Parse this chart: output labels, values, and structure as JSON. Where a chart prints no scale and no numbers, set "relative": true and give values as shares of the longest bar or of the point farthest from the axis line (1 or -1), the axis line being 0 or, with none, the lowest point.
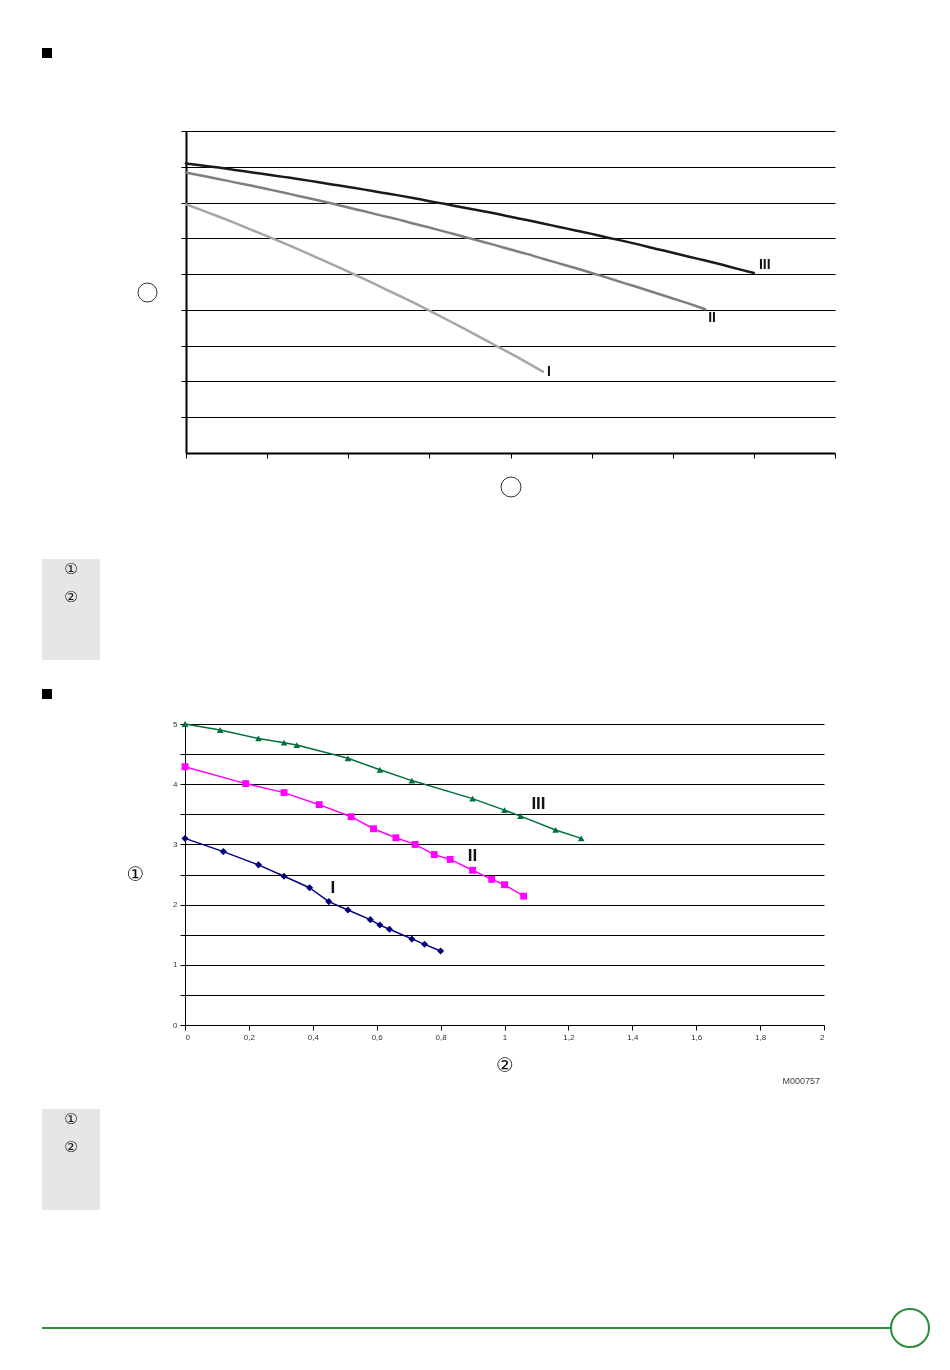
{
  "chart_data": [
    {
      "type": "line",
      "relative": true,
      "categories": [
        null,
        null,
        null,
        null,
        null,
        null,
        null,
        null,
        null,
        null,
        null,
        null,
        null,
        null,
        null,
        null,
        null,
        null,
        null,
        null,
        null,
        null,
        null,
        null,
        null,
        null,
        null,
        null,
        null,
        null,
        null,
        null,
        null,
        null,
        null,
        null,
        null,
        null,
        null,
        null,
        null
      ],
      "series": [
        {
          "name": "III",
          "color": "#1a1a1a",
          "values": [
            1,
            0.993,
            0.986,
            0.978,
            0.97,
            0.962,
            0.954,
            0.946,
            0.937,
            0.928,
            0.919,
            0.91,
            0.9,
            0.891,
            0.881,
            0.87,
            0.86,
            0.849,
            0.839,
            0.828,
            0.816,
            0.805,
            0.793,
            0.781,
            0.769,
            0.757,
            0.744,
            0.732,
            0.719,
            0.705,
            0.692,
            0.678,
            0.665,
            0.651,
            0.636,
            0.622,
            null,
            null,
            null,
            null,
            null
          ]
        },
        {
          "name": "II",
          "color": "#7f7f7f",
          "values": [
            0.969,
            0.958,
            0.947,
            0.935,
            0.924,
            0.912,
            0.9,
            0.887,
            0.875,
            0.862,
            0.848,
            0.835,
            0.821,
            0.808,
            0.793,
            0.779,
            0.764,
            0.749,
            0.734,
            0.719,
            0.703,
            0.688,
            0.671,
            0.655,
            0.639,
            0.622,
            0.605,
            0.587,
            0.57,
            0.552,
            0.534,
            0.516,
            0.497,
            null,
            null,
            null,
            null,
            null,
            null,
            null,
            null
          ]
        },
        {
          "name": "I",
          "color": "#a6a6a6",
          "values": [
            0.859,
            0.838,
            0.817,
            0.795,
            0.772,
            0.749,
            0.726,
            0.702,
            0.677,
            0.652,
            0.627,
            0.601,
            0.574,
            0.547,
            0.52,
            0.492,
            0.463,
            0.434,
            0.404,
            0.374,
            0.344,
            0.313,
            0.281,
            null,
            null,
            null,
            null,
            null,
            null,
            null,
            null,
            null,
            null,
            null,
            null,
            null,
            null,
            null,
            null,
            null,
            null
          ]
        }
      ],
      "grid": "y",
      "annotations": [
        "①",
        "②"
      ]
    },
    {
      "type": "line",
      "xlabel": "②",
      "ylabel": "①",
      "series": [
        {
          "name": "III",
          "color": "#00703c",
          "marker": "triangle",
          "x": [
            0,
            0.11,
            0.23,
            0.31,
            0.35,
            0.51,
            0.61,
            0.71,
            0.9,
            1.0,
            1.05,
            1.16,
            1.24
          ],
          "values": [
            5.0,
            4.9,
            4.76,
            4.69,
            4.65,
            4.43,
            4.24,
            4.06,
            3.76,
            3.57,
            3.47,
            3.24,
            3.1
          ]
        },
        {
          "name": "II",
          "color": "#ff00ff",
          "marker": "square",
          "x": [
            0,
            0.19,
            0.31,
            0.42,
            0.52,
            0.59,
            0.66,
            0.72,
            0.78,
            0.83,
            0.9,
            0.96,
            1.0,
            1.06
          ],
          "values": [
            4.29,
            4.01,
            3.86,
            3.66,
            3.46,
            3.26,
            3.11,
            3.0,
            2.83,
            2.75,
            2.57,
            2.42,
            2.33,
            2.14
          ]
        },
        {
          "name": "I",
          "color": "#000080",
          "marker": "diamond",
          "x": [
            0,
            0.12,
            0.23,
            0.31,
            0.39,
            0.45,
            0.51,
            0.58,
            0.61,
            0.64,
            0.71,
            0.75,
            0.8
          ],
          "values": [
            3.1,
            2.88,
            2.66,
            2.47,
            2.28,
            2.05,
            1.91,
            1.75,
            1.66,
            1.59,
            1.43,
            1.34,
            1.23
          ]
        }
      ],
      "xlim": [
        0,
        2
      ],
      "ylim": [
        0,
        5
      ],
      "xticks": [
        0,
        {
          "value": 0.2,
          "label": "0,2"
        },
        {
          "value": 0.4,
          "label": "0,4"
        },
        {
          "value": 0.6,
          "label": "0,6"
        },
        {
          "value": 0.8,
          "label": "0,8"
        },
        1,
        {
          "value": 1.2,
          "label": "1,2"
        },
        {
          "value": 1.4,
          "label": "1,4"
        },
        {
          "value": 1.6,
          "label": "1,6"
        },
        {
          "value": 1.8,
          "label": "1,8"
        },
        2
      ],
      "yticks": [
        0,
        {
          "value": 0.5,
          "label": null
        },
        1,
        {
          "value": 1.5,
          "label": null
        },
        2,
        {
          "value": 2.5,
          "label": null
        },
        3,
        {
          "value": 3.5,
          "label": null
        },
        4,
        {
          "value": 4.5,
          "label": null
        },
        5
      ],
      "grid": "y",
      "annotations": [
        "M000757",
        "①",
        "②"
      ]
    }
  ]
}
